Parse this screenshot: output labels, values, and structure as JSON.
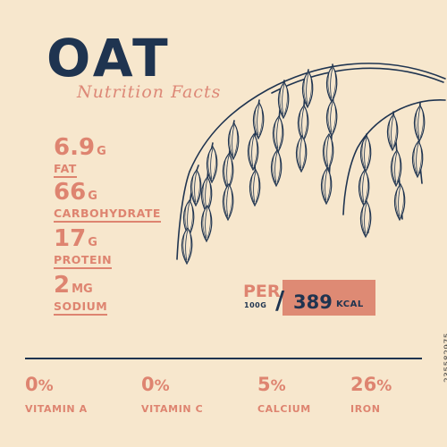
{
  "header": {
    "title": "OAT",
    "subtitle": "Nutrition Facts"
  },
  "nutrients": [
    {
      "amount": "6.9",
      "unit": "G",
      "name": "FAT"
    },
    {
      "amount": "66",
      "unit": "G",
      "name": "CARBOHYDRATE"
    },
    {
      "amount": "17",
      "unit": "G",
      "name": "PROTEIN"
    },
    {
      "amount": "2",
      "unit": "MG",
      "name": "SODIUM"
    }
  ],
  "energy": {
    "per_label": "PER",
    "per_unit": "100G",
    "value": "389",
    "unit": "KCAL"
  },
  "vitamins": [
    {
      "percent": "0",
      "name": "VITAMIN A"
    },
    {
      "percent": "0",
      "name": "VITAMIN C"
    },
    {
      "percent": "5",
      "name": "CALCIUM"
    },
    {
      "percent": "26",
      "name": "IRON"
    }
  ],
  "stock_id": "235582975",
  "colors": {
    "background": "#f7e7cd",
    "navy": "#1f3450",
    "salmon": "#de8470"
  },
  "illustration": "oat-plant-icon"
}
